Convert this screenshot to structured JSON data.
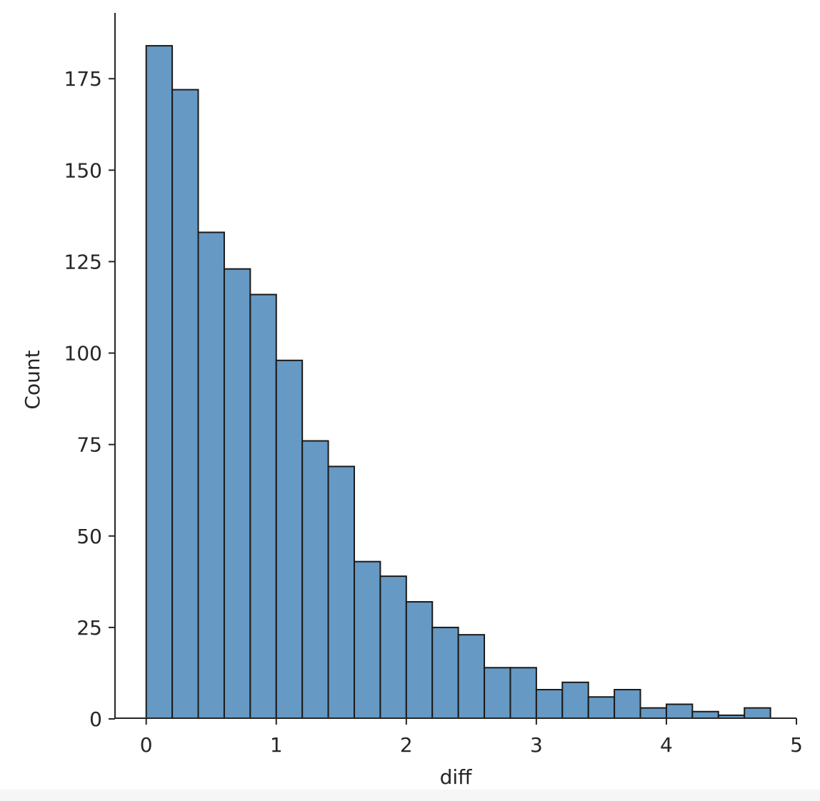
{
  "chart_data": {
    "type": "bar",
    "title": "",
    "xlabel": "diff",
    "ylabel": "Count",
    "xlim": [
      -0.24,
      5.0
    ],
    "ylim": [
      0,
      193
    ],
    "x_ticks": [
      0,
      1,
      2,
      3,
      4,
      5
    ],
    "y_ticks": [
      0,
      25,
      50,
      75,
      100,
      125,
      150,
      175
    ],
    "grid": false,
    "legend": "none",
    "bin_edges": [
      0.0,
      0.2,
      0.4,
      0.6,
      0.8,
      1.0,
      1.2,
      1.4,
      1.6,
      1.8,
      2.0,
      2.2,
      2.4,
      2.6,
      2.8,
      3.0,
      3.2,
      3.4,
      3.6,
      3.8,
      4.0,
      4.2,
      4.4,
      4.6,
      4.8
    ],
    "values": [
      184,
      172,
      133,
      123,
      116,
      98,
      76,
      69,
      43,
      39,
      32,
      25,
      23,
      14,
      14,
      8,
      10,
      6,
      8,
      3,
      4,
      2,
      1,
      3
    ],
    "bar_color": "#6699c3",
    "edge_color": "#1a1a1a"
  }
}
